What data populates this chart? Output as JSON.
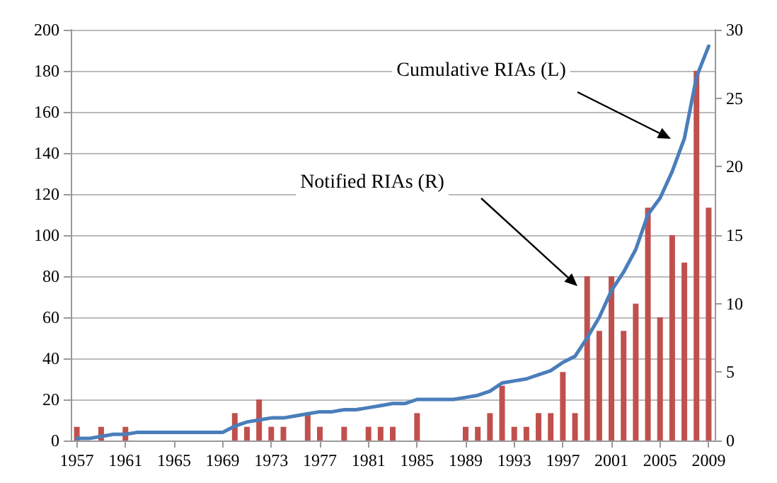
{
  "chart_data": {
    "type": "bar",
    "x": [
      1957,
      1958,
      1959,
      1960,
      1961,
      1962,
      1963,
      1964,
      1965,
      1966,
      1967,
      1968,
      1969,
      1970,
      1971,
      1972,
      1973,
      1974,
      1975,
      1976,
      1977,
      1978,
      1979,
      1980,
      1981,
      1982,
      1983,
      1984,
      1985,
      1986,
      1987,
      1988,
      1989,
      1990,
      1991,
      1992,
      1993,
      1994,
      1995,
      1996,
      1997,
      1998,
      1999,
      2000,
      2001,
      2002,
      2003,
      2004,
      2005,
      2006,
      2007,
      2008,
      2009
    ],
    "series": [
      {
        "axis": "y2",
        "color": "#c0504d",
        "values": [
          1,
          0,
          1,
          0,
          1,
          0,
          0,
          0,
          0,
          0,
          0,
          0,
          0,
          2,
          1,
          3,
          1,
          1,
          0,
          2,
          1,
          0,
          1,
          0,
          1,
          1,
          1,
          0,
          2,
          0,
          0,
          0,
          1,
          1,
          2,
          4,
          1,
          1,
          2,
          2,
          5,
          2,
          12,
          8,
          12,
          8,
          10,
          17,
          9,
          15,
          13,
          27,
          17
        ]
      },
      {
        "type": "line",
        "color": "#4a7ebb",
        "values": [
          1,
          1,
          2,
          3,
          3,
          4,
          4,
          4,
          4,
          4,
          4,
          4,
          4,
          7,
          9,
          10,
          11,
          11,
          12,
          13,
          14,
          14,
          15,
          15,
          16,
          17,
          18,
          18,
          20,
          20,
          20,
          20,
          21,
          22,
          24,
          28,
          29,
          30,
          32,
          34,
          38,
          41,
          50,
          60,
          73,
          82,
          93,
          110,
          118,
          131,
          147,
          177,
          192
        ]
      }
    ],
    "xlim": [
      1956.5,
      2009.5
    ],
    "xticks": [
      1957,
      1961,
      1965,
      1969,
      1973,
      1977,
      1981,
      1985,
      1989,
      1993,
      1997,
      2001,
      2005,
      2009
    ],
    "ylim": [
      0,
      200
    ],
    "yticks": [
      0,
      20,
      40,
      60,
      80,
      100,
      120,
      140,
      160,
      180,
      200
    ],
    "y2lim": [
      0,
      30
    ],
    "y2ticks": [
      0,
      5,
      10,
      15,
      20,
      25,
      30
    ],
    "grid": "y",
    "marker": "none",
    "line_style": "solid",
    "annotations": [
      "Cumulative RIAs (L)",
      "Notified RIAs (R)"
    ]
  }
}
